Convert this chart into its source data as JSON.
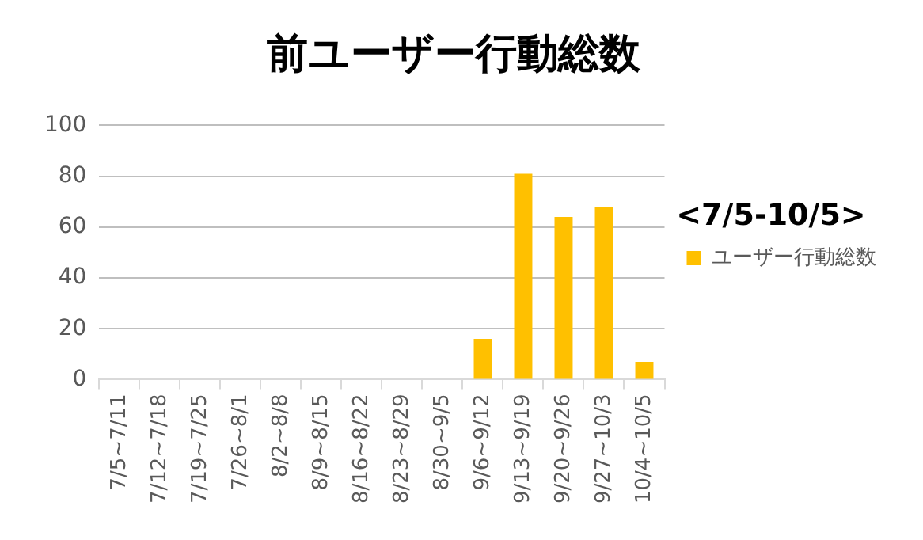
{
  "chart_data": {
    "type": "bar",
    "title": "前ユーザー行動総数",
    "categories": [
      "7/5~7/11",
      "7/12~7/18",
      "7/19~7/25",
      "7/26~8/1",
      "8/2~8/8",
      "8/9~8/15",
      "8/16~8/22",
      "8/23~8/29",
      "8/30~9/5",
      "9/6~9/12",
      "9/13~9/19",
      "9/20~9/26",
      "9/27~10/3",
      "10/4~10/5"
    ],
    "series": [
      {
        "name": "ユーザー行動総数",
        "color": "#ffc000",
        "values": [
          0,
          0,
          0,
          0,
          0,
          0,
          0,
          0,
          0,
          16,
          81,
          64,
          68,
          7
        ]
      }
    ],
    "ylim": [
      0,
      100
    ],
    "yticks": [
      0,
      20,
      40,
      60,
      80,
      100
    ],
    "grid": "y",
    "legend": "right",
    "annotations": [
      "<7/5-10/5>"
    ]
  }
}
